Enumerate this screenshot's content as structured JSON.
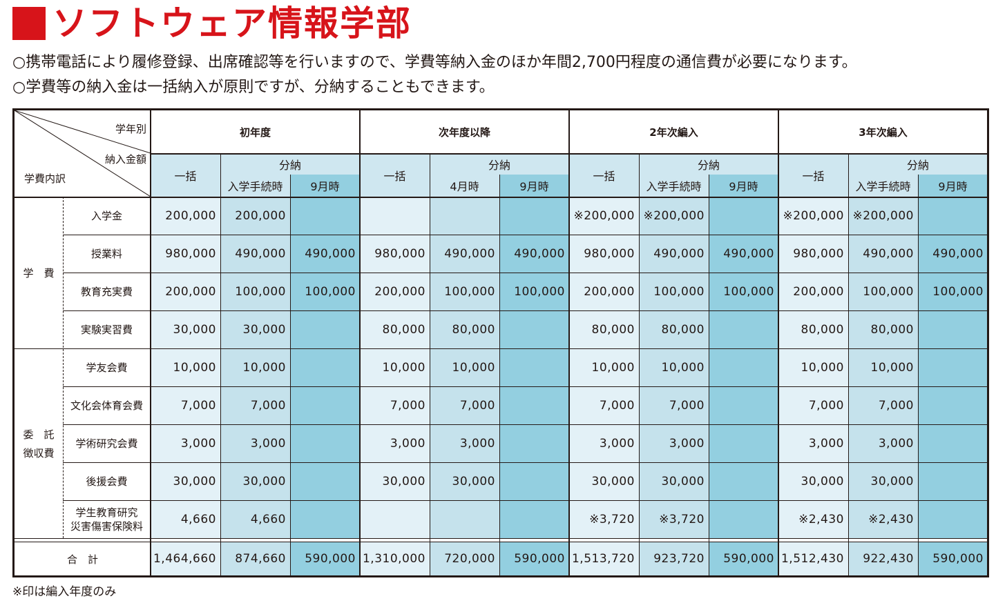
{
  "title": "ソフトウェア情報学部",
  "notes": [
    "○携帯電話により履修登録、出席確認等を行いますので、学費等納入金のほか年間2,700円程度の通信費が必要になります。",
    "○学費等の納入金は一括納入が原則ですが、分納することもできます。"
  ],
  "header": {
    "corner_top": "学年別",
    "corner_mid": "納入金額",
    "corner_bottom": "学費内訳",
    "groups": [
      {
        "label": "初年度",
        "ikkatsu": "一括",
        "bunno": "分納",
        "first": "入学手続時",
        "second": "9月時"
      },
      {
        "label": "次年度以降",
        "ikkatsu": "一括",
        "bunno": "分納",
        "first": "4月時",
        "second": "9月時"
      },
      {
        "label": "2年次編入",
        "ikkatsu": "一括",
        "bunno": "分納",
        "first": "入学手続時",
        "second": "9月時"
      },
      {
        "label": "3年次編入",
        "ikkatsu": "一括",
        "bunno": "分納",
        "first": "入学手続時",
        "second": "9月時"
      }
    ]
  },
  "categories": {
    "gakuhi": "学　費",
    "itaku_line1": "委　託",
    "itaku_line2": "徴収費"
  },
  "rows": [
    {
      "label": "入学金",
      "values": [
        "200,000",
        "200,000",
        "",
        "",
        "",
        "",
        "※200,000",
        "※200,000",
        "",
        "※200,000",
        "※200,000",
        ""
      ]
    },
    {
      "label": "授業料",
      "values": [
        "980,000",
        "490,000",
        "490,000",
        "980,000",
        "490,000",
        "490,000",
        "980,000",
        "490,000",
        "490,000",
        "980,000",
        "490,000",
        "490,000"
      ]
    },
    {
      "label": "教育充実費",
      "values": [
        "200,000",
        "100,000",
        "100,000",
        "200,000",
        "100,000",
        "100,000",
        "200,000",
        "100,000",
        "100,000",
        "200,000",
        "100,000",
        "100,000"
      ]
    },
    {
      "label": "実験実習費",
      "values": [
        "30,000",
        "30,000",
        "",
        "80,000",
        "80,000",
        "",
        "80,000",
        "80,000",
        "",
        "80,000",
        "80,000",
        ""
      ]
    },
    {
      "label": "学友会費",
      "values": [
        "10,000",
        "10,000",
        "",
        "10,000",
        "10,000",
        "",
        "10,000",
        "10,000",
        "",
        "10,000",
        "10,000",
        ""
      ]
    },
    {
      "label": "文化会体育会費",
      "values": [
        "7,000",
        "7,000",
        "",
        "7,000",
        "7,000",
        "",
        "7,000",
        "7,000",
        "",
        "7,000",
        "7,000",
        ""
      ]
    },
    {
      "label": "学術研究会費",
      "values": [
        "3,000",
        "3,000",
        "",
        "3,000",
        "3,000",
        "",
        "3,000",
        "3,000",
        "",
        "3,000",
        "3,000",
        ""
      ]
    },
    {
      "label": "後援会費",
      "values": [
        "30,000",
        "30,000",
        "",
        "30,000",
        "30,000",
        "",
        "30,000",
        "30,000",
        "",
        "30,000",
        "30,000",
        ""
      ]
    },
    {
      "label": "学生教育研究\n災害傷害保険料",
      "label_line1": "学生教育研究",
      "label_line2": "災害傷害保険料",
      "values": [
        "4,660",
        "4,660",
        "",
        "",
        "",
        "",
        "※3,720",
        "※3,720",
        "",
        "※2,430",
        "※2,430",
        ""
      ]
    }
  ],
  "total": {
    "label": "合　計",
    "values": [
      "1,464,660",
      "874,660",
      "590,000",
      "1,310,000",
      "720,000",
      "590,000",
      "1,513,720",
      "923,720",
      "590,000",
      "1,512,430",
      "922,430",
      "590,000"
    ]
  },
  "footnote": "※印は編入年度のみ",
  "colors": {
    "title": "#d7141a",
    "col_light": "#e3f1f7",
    "col_mid": "#c5e2ec",
    "col_dark": "#93cfe0"
  }
}
